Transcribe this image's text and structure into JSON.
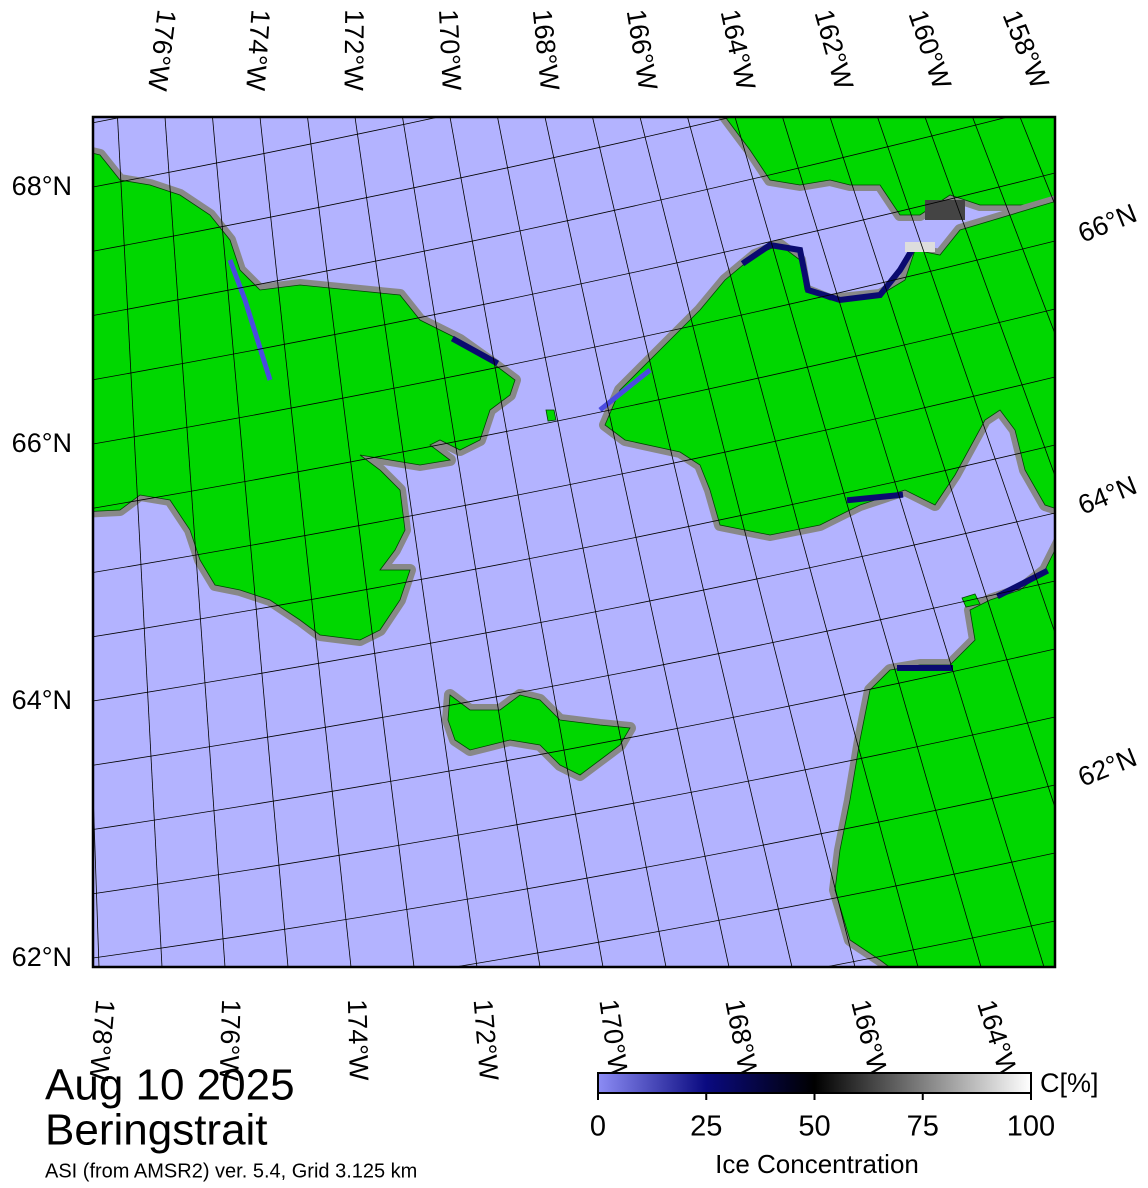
{
  "header": {
    "date": "Aug 10 2025",
    "region": "Beringstrait",
    "source": "ASI (from AMSR2) ver. 5.4,  Grid 3.125 km"
  },
  "map": {
    "top_labels": [
      "176°W",
      "174°W",
      "172°W",
      "170°W",
      "168°W",
      "166°W",
      "164°W",
      "162°W",
      "160°W",
      "158°W"
    ],
    "bottom_labels": [
      "178°W",
      "176°W",
      "174°W",
      "172°W",
      "170°W",
      "168°W",
      "166°W",
      "164°W"
    ],
    "left_labels": [
      "68°N",
      "66°N",
      "64°N",
      "62°N"
    ],
    "right_labels": [
      "66°N",
      "64°N",
      "62°N"
    ]
  },
  "colorbar": {
    "unit": "C[%]",
    "label": "Ice Concentration",
    "range": [
      0,
      100
    ],
    "ticks": [
      0,
      25,
      50,
      75,
      100
    ]
  }
}
